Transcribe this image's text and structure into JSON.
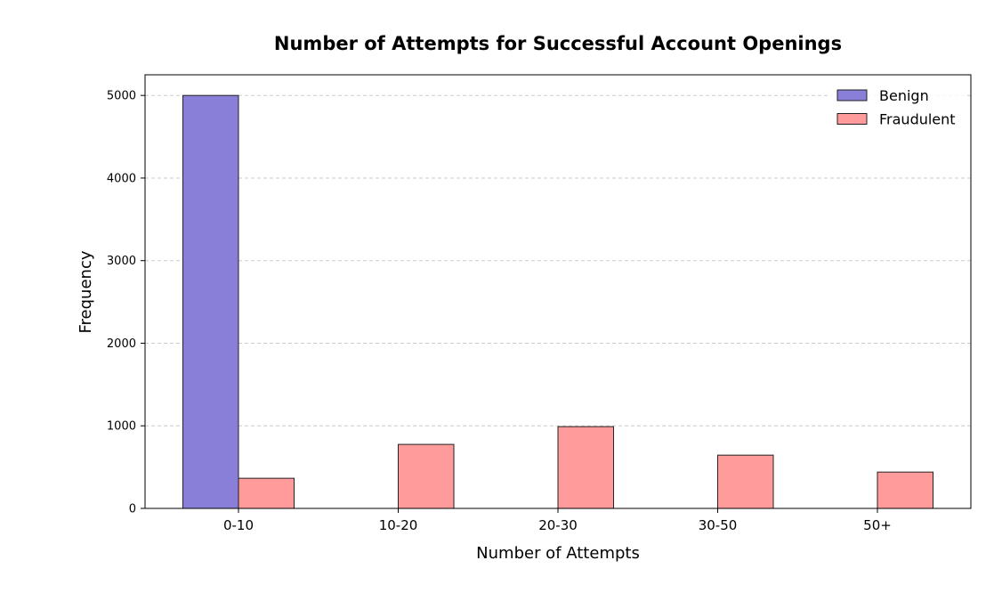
{
  "chart_data": {
    "type": "bar",
    "title": "Number of Attempts for Successful Account Openings",
    "xlabel": "Number of Attempts",
    "ylabel": "Frequency",
    "categories": [
      "0-10",
      "10-20",
      "20-30",
      "30-50",
      "50+"
    ],
    "series": [
      {
        "name": "Benign",
        "values": [
          5000,
          0,
          0,
          0,
          0
        ],
        "color": "#8a7fd8"
      },
      {
        "name": "Fraudulent",
        "values": [
          365,
          775,
          990,
          645,
          440
        ],
        "color": "#ff9b9b"
      }
    ],
    "ylim": [
      0,
      5250
    ],
    "yticks": [
      0,
      1000,
      2000,
      3000,
      4000,
      5000
    ],
    "grid": true,
    "legend_position": "top-right"
  }
}
